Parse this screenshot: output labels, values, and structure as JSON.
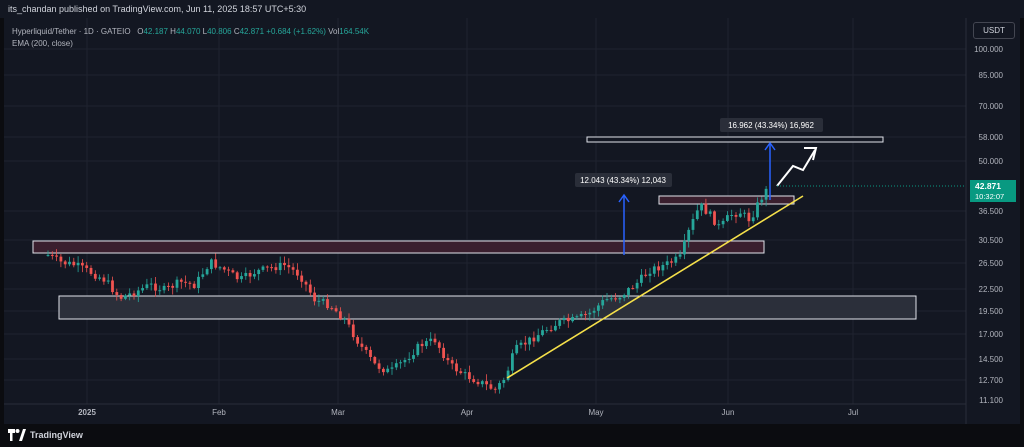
{
  "header": {
    "publisher_line": "its_chandan published on TradingView.com, Jun 11, 2025 18:57 UTC+5:30"
  },
  "legend": {
    "symbol": "Hyperliquid/Tether · 1D · GATEIO",
    "open_label": "O",
    "open": "42.187",
    "high_label": "H",
    "high": "44.070",
    "low_label": "L",
    "low": "40.806",
    "close_label": "C",
    "close": "42.871",
    "change": "+0.684 (+1.62%)",
    "vol_label": "Vol",
    "vol": "164.54K",
    "indicator": "EMA (200, close)"
  },
  "currency_badge": "USDT",
  "price_axis": {
    "ticks": [
      "100.000",
      "85.000",
      "70.000",
      "58.000",
      "50.000",
      "36.500",
      "30.500",
      "26.500",
      "22.500",
      "19.500",
      "17.000",
      "14.500",
      "12.700",
      "11.100"
    ],
    "current_price": "42.871",
    "countdown": "10:32:07"
  },
  "time_axis": {
    "ticks": [
      "2025",
      "Feb",
      "Mar",
      "Apr",
      "May",
      "Jun",
      "Jul"
    ]
  },
  "annotations": {
    "measure_upper": "16.962 (43.34%) 16,962",
    "measure_lower": "12.043 (43.34%) 12,043"
  },
  "colors": {
    "up": "#26a69a",
    "down": "#ef5350",
    "trendline": "#f5e04a",
    "arrow": "#2962ff"
  },
  "footer": {
    "brand": "TradingView"
  }
}
